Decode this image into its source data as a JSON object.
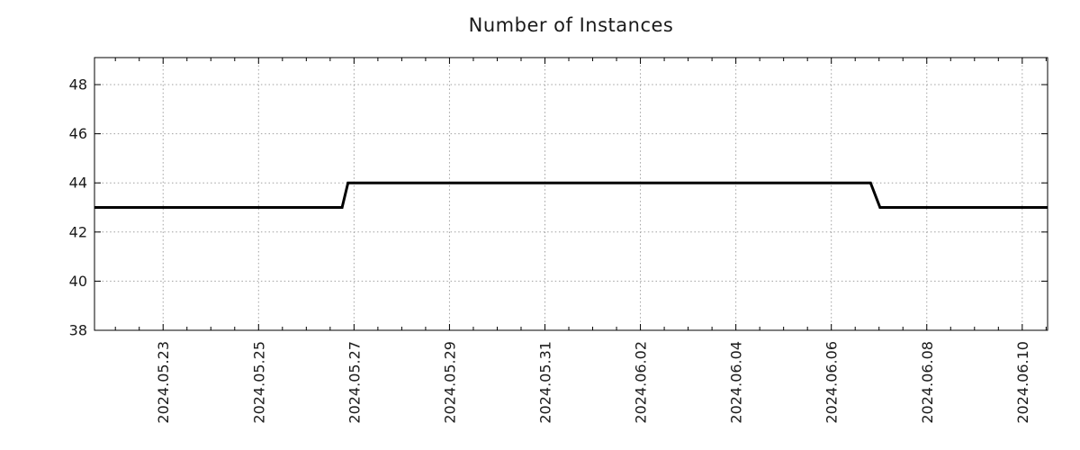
{
  "window": {
    "background": "#ffffff"
  },
  "chart_data": {
    "type": "line",
    "title": "Number of Instances",
    "legend": "none",
    "x_axis": {
      "kind": "time",
      "domain_start": "2024-05-21 13:30",
      "domain_end": "2024-06-10 12:45",
      "minor_tick_interval_hours": 12,
      "label_rotation_deg": -90,
      "major_ticks": [
        {
          "t": "2024-05-23 00:00",
          "label": "2024.05.23"
        },
        {
          "t": "2024-05-25 00:00",
          "label": "2024.05.25"
        },
        {
          "t": "2024-05-27 00:00",
          "label": "2024.05.27"
        },
        {
          "t": "2024-05-29 00:00",
          "label": "2024.05.29"
        },
        {
          "t": "2024-05-31 00:00",
          "label": "2024.05.31"
        },
        {
          "t": "2024-06-02 00:00",
          "label": "2024.06.02"
        },
        {
          "t": "2024-06-04 00:00",
          "label": "2024.06.04"
        },
        {
          "t": "2024-06-06 00:00",
          "label": "2024.06.06"
        },
        {
          "t": "2024-06-08 00:00",
          "label": "2024.06.08"
        },
        {
          "t": "2024-06-10 00:00",
          "label": "2024.06.10"
        }
      ]
    },
    "y_axis": {
      "min": 38,
      "max": 49.1,
      "ticks": [
        38,
        40,
        42,
        44,
        46,
        48
      ]
    },
    "series": [
      {
        "name": "instances",
        "color": "#000000",
        "width": 3,
        "points": [
          {
            "t": "2024-05-21 13:30",
            "v": 43
          },
          {
            "t": "2024-05-26 18:00",
            "v": 43
          },
          {
            "t": "2024-05-26 21:00",
            "v": 44
          },
          {
            "t": "2024-06-06 19:45",
            "v": 44
          },
          {
            "t": "2024-06-07 00:30",
            "v": 43
          },
          {
            "t": "2024-06-10 12:45",
            "v": 43
          }
        ]
      }
    ],
    "grid": {
      "color": "#a0a0a0",
      "style": "dotted",
      "vertical": true,
      "horizontal": true
    },
    "axis_color": "#000000",
    "text_color": "#1a1a1a"
  }
}
